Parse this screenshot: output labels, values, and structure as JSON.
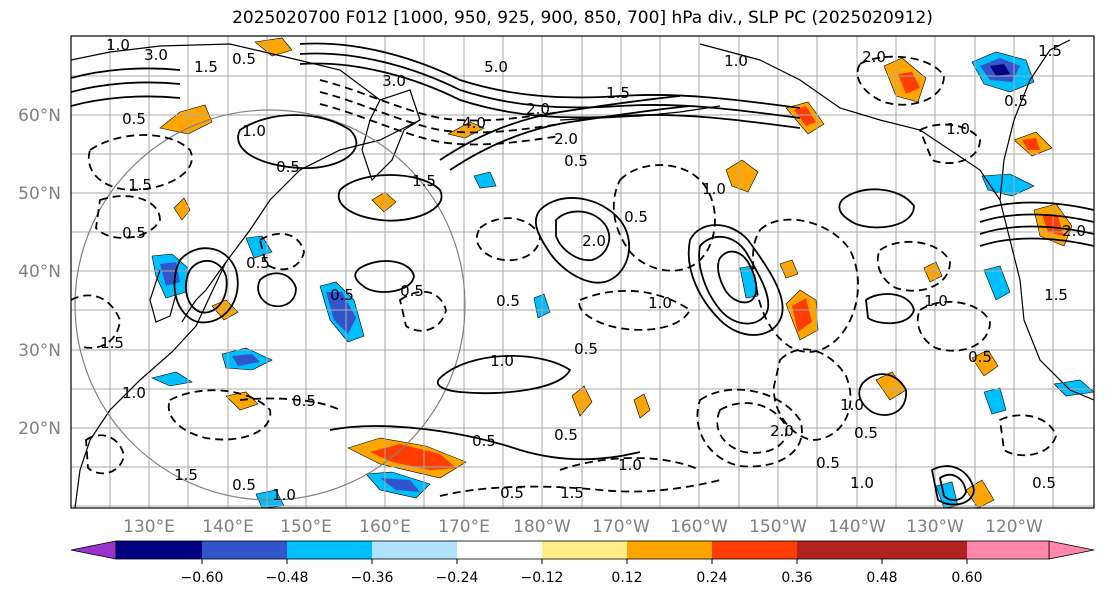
{
  "title": "2025020700 F012 [1000, 950, 925, 900, 850, 700] hPa div., SLP PC (2025020912)",
  "lat_labels": [
    "60°N",
    "50°N",
    "40°N",
    "30°N",
    "20°N"
  ],
  "lon_labels": [
    "130°E",
    "140°E",
    "150°E",
    "160°E",
    "170°E",
    "180°W",
    "170°W",
    "160°W",
    "150°W",
    "140°W",
    "130°W",
    "120°W"
  ],
  "colorbar": {
    "colors": [
      "#9933cc",
      "#000080",
      "#3355cc",
      "#00bfff",
      "#b0e2ff",
      "#ffffff",
      "#ffee88",
      "#ffa500",
      "#ff3d00",
      "#b22222",
      "#ff88aa"
    ],
    "tick_labels": [
      "−0.60",
      "−0.48",
      "−0.36",
      "−0.24",
      "−0.12",
      "0.12",
      "0.24",
      "0.36",
      "0.48",
      "0.60"
    ]
  },
  "contour_labels": [
    "1.0",
    "1.5",
    "2.0",
    "3.0",
    "4.0",
    "5.0",
    "0.5",
    "0.5",
    "0.5",
    "0.5",
    "0.5",
    "0.5",
    "0.5",
    "0.5",
    "0.5",
    "0.5",
    "0.5",
    "0.5",
    "0.5",
    "0.5",
    "0.5",
    "1.0",
    "1.0",
    "1.0",
    "1.0",
    "1.0",
    "1.0",
    "1.5",
    "1.5",
    "1.5",
    "1.5",
    "2.0",
    "2.0",
    "2.0",
    "3.0",
    "0.5",
    "0.5",
    "0.5",
    "0.5",
    "1.0",
    "1.0",
    "1.0",
    "2.0",
    "1.5",
    "0.5",
    "1.5",
    "1.0",
    "1.5",
    "1.0",
    "1.5",
    "1.0",
    "2.0",
    "0.5"
  ]
}
